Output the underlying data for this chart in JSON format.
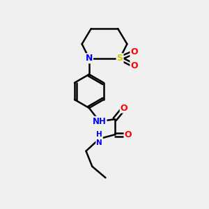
{
  "background_color": "#f0f0f0",
  "bond_color": "#000000",
  "atom_colors": {
    "N": "#0000ff",
    "O": "#ff0000",
    "S": "#cccc00",
    "C": "#000000",
    "H": "#808080"
  },
  "figsize": [
    3.0,
    3.0
  ],
  "dpi": 100,
  "xlim": [
    0,
    10
  ],
  "ylim": [
    0,
    10
  ]
}
